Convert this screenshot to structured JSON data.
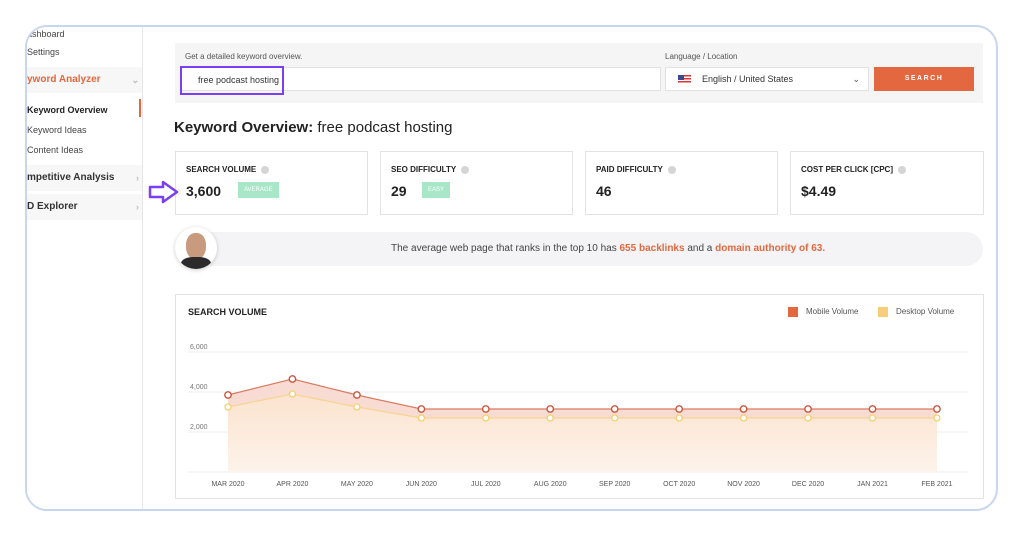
{
  "sidebar": {
    "items": [
      {
        "label": "ashboard"
      },
      {
        "label": "Settings"
      }
    ],
    "groups": [
      {
        "label": "yword Analyzer"
      },
      {
        "label": "mpetitive Analysis"
      },
      {
        "label": "D Explorer"
      }
    ],
    "sub": [
      {
        "label": "Keyword Overview"
      },
      {
        "label": "Keyword Ideas"
      },
      {
        "label": "Content Ideas"
      }
    ]
  },
  "search": {
    "label": "Get a detailed keyword overview.",
    "value": "free podcast hosting",
    "lang_label": "Language / Location",
    "lang_value": "English / United States",
    "button": "SEARCH"
  },
  "overview": {
    "title": "Keyword Overview:",
    "keyword": "free podcast hosting"
  },
  "cards": [
    {
      "title": "SEARCH VOLUME",
      "value": "3,600",
      "badge": "AVERAGE"
    },
    {
      "title": "SEO DIFFICULTY",
      "value": "29",
      "badge": "EASY"
    },
    {
      "title": "PAID DIFFICULTY",
      "value": "46"
    },
    {
      "title": "COST PER CLICK [CPC]",
      "value": "$4.49"
    }
  ],
  "tip": {
    "t1": "The average web page that ranks in the top 10 has ",
    "b1": "655 backlinks",
    "t2": " and a ",
    "b2": "domain authority of 63."
  },
  "colors": {
    "accent": "#e4683f",
    "highlight": "#7a3ff2"
  },
  "chart_data": {
    "type": "area",
    "title": "SEARCH VOLUME",
    "categories": [
      "MAR 2020",
      "APR 2020",
      "MAY 2020",
      "JUN 2020",
      "JUL 2020",
      "AUG 2020",
      "SEP 2020",
      "OCT 2020",
      "NOV 2020",
      "DEC 2020",
      "JAN 2021",
      "FEB 2021"
    ],
    "yticks": [
      "2,000",
      "4,000",
      "6,000"
    ],
    "ylim": [
      0,
      6000
    ],
    "grid": true,
    "legend": "top-right",
    "series": [
      {
        "name": "Mobile Volume",
        "color": "#e4683f",
        "values": [
          3850,
          4650,
          3850,
          3150,
          3150,
          3150,
          3150,
          3150,
          3150,
          3150,
          3150,
          3150
        ]
      },
      {
        "name": "Desktop Volume",
        "color": "#f7cd7a",
        "values": [
          3250,
          3900,
          3250,
          2700,
          2700,
          2700,
          2700,
          2700,
          2700,
          2700,
          2700,
          2700
        ]
      }
    ]
  }
}
